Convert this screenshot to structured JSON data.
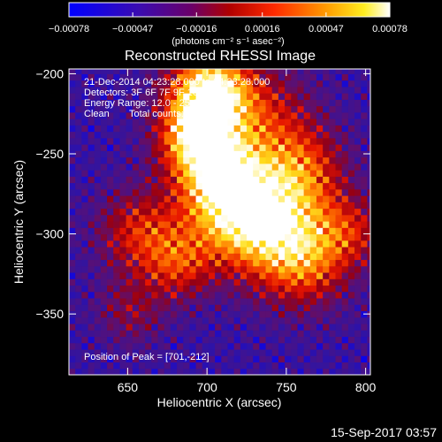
{
  "chart_data": {
    "type": "heatmap",
    "title": "Reconstructed RHESSI Image",
    "xlabel": "Heliocentric X (arcsec)",
    "ylabel": "Heliocentric Y (arcsec)",
    "xlim": [
      613,
      803
    ],
    "ylim": [
      -388,
      -197
    ],
    "x_ticks": [
      650,
      700,
      750,
      800
    ],
    "y_ticks": [
      -200,
      -250,
      -300,
      -350
    ],
    "x_tick_labels": [
      "650",
      "700",
      "750",
      "800"
    ],
    "y_tick_labels": [
      "−200",
      "−250",
      "−300",
      "−350"
    ],
    "colorbar": {
      "range": [
        -0.00078,
        0.00078
      ],
      "tick_values": [
        -0.00078,
        -0.00047,
        -0.00016,
        0.00016,
        0.00047,
        0.00078
      ],
      "tick_labels": [
        "−0.00078",
        "−0.00047",
        "−0.00016",
        "0.00016",
        "0.00047",
        "0.00078"
      ],
      "unit": "(photons cm⁻² s⁻¹ asec⁻²)",
      "colors": [
        "#0000ff",
        "#4b0082",
        "#800000",
        "#ff0000",
        "#ff8000",
        "#ffff00",
        "#ffffff"
      ]
    },
    "annotations": {
      "time_range": "21-Dec-2014 04:23:28.000 to 04:33:28.000",
      "detectors": "Detectors: 3F 6F 7F 9F 10F 0",
      "energy_range": "Energy Range: 12.0 - 25.0 keV",
      "clean": "Clean",
      "total_counts": "Total counts: 2.56e+03",
      "peak_position": "Position of Peak = [701,-212]"
    },
    "peak": [
      701,
      -212
    ],
    "grid": false
  },
  "footer": {
    "timestamp": "15-Sep-2017 03:57"
  }
}
